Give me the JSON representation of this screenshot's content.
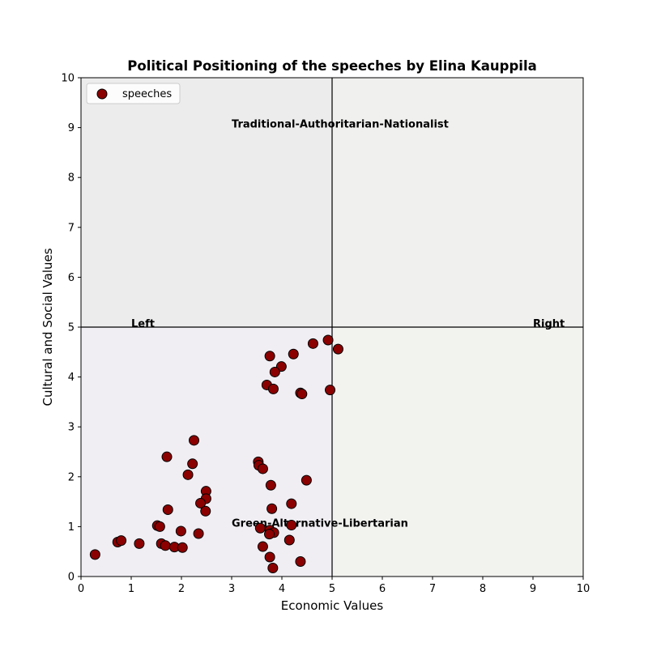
{
  "chart_data": {
    "type": "scatter",
    "title": "Political Positioning of the speeches by Elina Kauppila",
    "xlabel": "Economic Values",
    "ylabel": "Cultural and Social Values",
    "xlim": [
      0,
      10
    ],
    "ylim": [
      0,
      10
    ],
    "xticks": [
      "0",
      "1",
      "2",
      "3",
      "4",
      "5",
      "6",
      "7",
      "8",
      "9",
      "10"
    ],
    "yticks": [
      "0",
      "1",
      "2",
      "3",
      "4",
      "5",
      "6",
      "7",
      "8",
      "9",
      "10"
    ],
    "grid": false,
    "legend": {
      "placement": "top-left",
      "entries": [
        "speeches"
      ]
    },
    "quadrant_lines": {
      "x": 5,
      "y": 5
    },
    "quadrant_colors": {
      "top_left": "#ececec",
      "top_right": "#f0f1ee",
      "bottom_left": "#f1eef3",
      "bottom_right": "#f2f2ef"
    },
    "annotations": [
      {
        "text": "Traditional-Authoritarian-Nationalist",
        "x": 3.0,
        "y": 9.0
      },
      {
        "text": "Left",
        "x": 1.0,
        "y": 5.0
      },
      {
        "text": "Right",
        "x": 9.0,
        "y": 5.0
      },
      {
        "text": "Green-Alternative-Libertarian",
        "x": 3.0,
        "y": 1.0
      }
    ],
    "marker_color": "#8b0000",
    "series": [
      {
        "name": "speeches",
        "points": [
          [
            4.92,
            4.74
          ],
          [
            4.62,
            4.67
          ],
          [
            5.12,
            4.56
          ],
          [
            4.23,
            4.46
          ],
          [
            3.76,
            4.42
          ],
          [
            3.99,
            4.21
          ],
          [
            3.86,
            4.1
          ],
          [
            3.7,
            3.84
          ],
          [
            3.83,
            3.76
          ],
          [
            4.37,
            3.68
          ],
          [
            4.4,
            3.66
          ],
          [
            4.96,
            3.74
          ],
          [
            2.25,
            2.73
          ],
          [
            1.71,
            2.4
          ],
          [
            3.53,
            2.3
          ],
          [
            3.54,
            2.23
          ],
          [
            3.62,
            2.16
          ],
          [
            2.22,
            2.26
          ],
          [
            2.13,
            2.04
          ],
          [
            4.49,
            1.93
          ],
          [
            3.78,
            1.83
          ],
          [
            2.49,
            1.71
          ],
          [
            2.49,
            1.56
          ],
          [
            2.38,
            1.47
          ],
          [
            2.48,
            1.31
          ],
          [
            1.73,
            1.34
          ],
          [
            4.19,
            1.46
          ],
          [
            3.8,
            1.36
          ],
          [
            1.52,
            1.02
          ],
          [
            1.57,
            1.0
          ],
          [
            1.99,
            0.91
          ],
          [
            2.34,
            0.86
          ],
          [
            3.57,
            0.97
          ],
          [
            3.76,
            0.93
          ],
          [
            3.84,
            0.88
          ],
          [
            3.75,
            0.85
          ],
          [
            4.19,
            1.03
          ],
          [
            4.15,
            0.73
          ],
          [
            0.73,
            0.69
          ],
          [
            0.8,
            0.72
          ],
          [
            1.16,
            0.66
          ],
          [
            1.6,
            0.66
          ],
          [
            1.68,
            0.62
          ],
          [
            1.86,
            0.59
          ],
          [
            2.02,
            0.58
          ],
          [
            3.62,
            0.6
          ],
          [
            3.76,
            0.39
          ],
          [
            4.37,
            0.3
          ],
          [
            3.82,
            0.17
          ],
          [
            0.28,
            0.44
          ]
        ]
      }
    ]
  }
}
